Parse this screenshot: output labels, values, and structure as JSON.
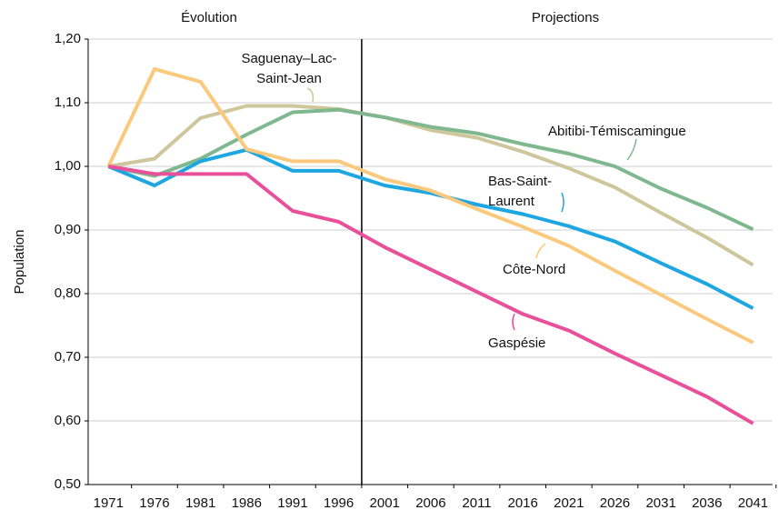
{
  "chart_data": {
    "type": "line",
    "annotations": [
      "Évolution",
      "Projections"
    ],
    "y_label": "Population",
    "categories": [
      "1971",
      "1976",
      "1981",
      "1986",
      "1991",
      "1996",
      "2001",
      "2006",
      "2011",
      "2016",
      "2021",
      "2026",
      "2031",
      "2036",
      "2041"
    ],
    "ylim": [
      0.5,
      1.2
    ],
    "yticks": [
      {
        "value": 0.5,
        "label": "0,50"
      },
      {
        "value": 0.6,
        "label": "0,60"
      },
      {
        "value": 0.7,
        "label": "0,70"
      },
      {
        "value": 0.8,
        "label": "0,80"
      },
      {
        "value": 0.9,
        "label": "0,90"
      },
      {
        "value": 1.0,
        "label": "1,00"
      },
      {
        "value": 1.1,
        "label": "1,10"
      },
      {
        "value": 1.2,
        "label": "1,20"
      }
    ],
    "grid": true,
    "series": [
      {
        "name": [
          "Saguenay–Lac-",
          "Saint-Jean"
        ],
        "color": "#cfc79c",
        "values": [
          1.0,
          1.012,
          1.076,
          1.095,
          1.095,
          1.09,
          1.077,
          1.057,
          1.045,
          1.023,
          0.997,
          0.967,
          0.927,
          0.888,
          0.845
        ]
      },
      {
        "name": [
          "Abitibi-Témiscamingue"
        ],
        "color": "#7fb88f",
        "values": [
          1.0,
          0.985,
          1.012,
          1.05,
          1.085,
          1.089,
          1.077,
          1.062,
          1.052,
          1.035,
          1.02,
          1.0,
          0.965,
          0.935,
          0.901
        ]
      },
      {
        "name": [
          "Bas-Saint-",
          "Laurent"
        ],
        "color": "#1ea6e0",
        "values": [
          1.0,
          0.97,
          1.008,
          1.026,
          0.993,
          0.993,
          0.97,
          0.958,
          0.94,
          0.925,
          0.906,
          0.882,
          0.848,
          0.815,
          0.777
        ]
      },
      {
        "name": [
          "Côte-Nord"
        ],
        "color": "#fbc97e",
        "values": [
          1.0,
          1.153,
          1.133,
          1.027,
          1.008,
          1.008,
          0.98,
          0.962,
          0.933,
          0.905,
          0.875,
          0.836,
          0.798,
          0.76,
          0.723
        ]
      },
      {
        "name": [
          "Gaspésie"
        ],
        "color": "#e8509a",
        "values": [
          1.0,
          0.988,
          0.988,
          0.988,
          0.93,
          0.913,
          0.873,
          0.838,
          0.803,
          0.768,
          0.742,
          0.706,
          0.672,
          0.638,
          0.596
        ]
      }
    ]
  }
}
